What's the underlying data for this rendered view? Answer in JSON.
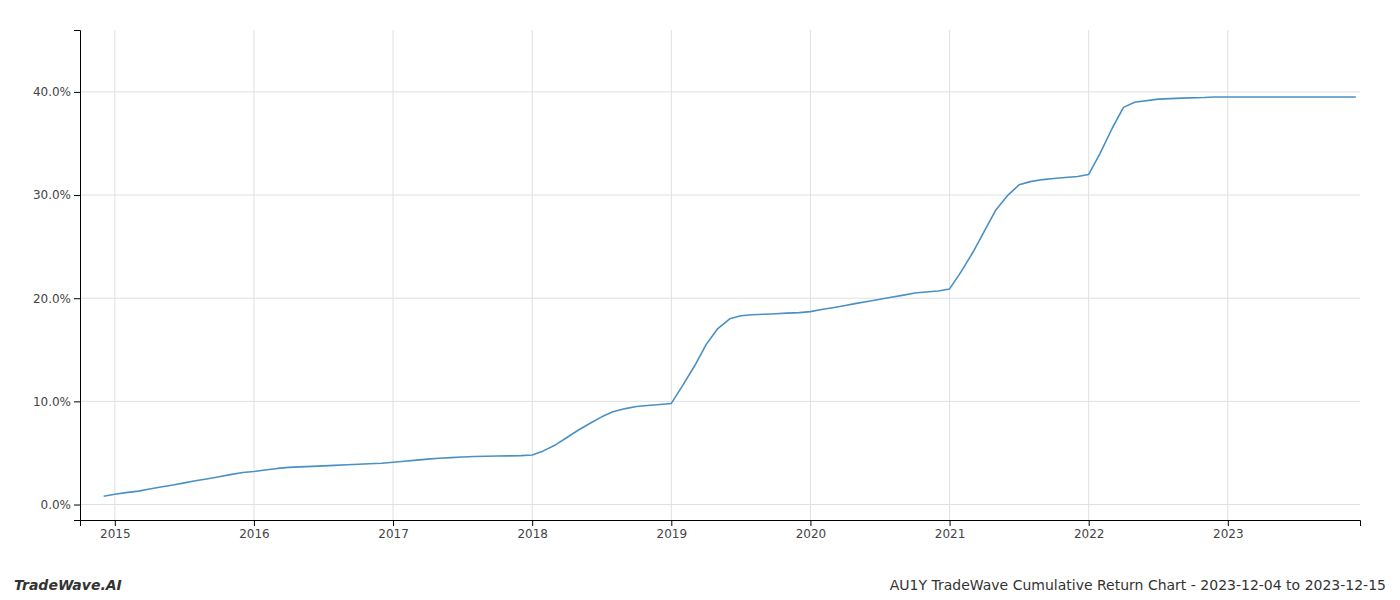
{
  "chart_data": {
    "type": "line",
    "annotations": [
      "TradeWave.AI",
      "AU1Y TradeWave Cumulative Return Chart - 2023-12-04 to 2023-12-15"
    ],
    "color": "#4a90c4",
    "grid": true,
    "x": [
      2014.92,
      2015.0,
      2015.08,
      2015.17,
      2015.25,
      2015.33,
      2015.42,
      2015.5,
      2015.58,
      2015.67,
      2015.75,
      2015.83,
      2015.92,
      2016.0,
      2016.08,
      2016.17,
      2016.25,
      2016.33,
      2016.42,
      2016.5,
      2016.58,
      2016.67,
      2016.75,
      2016.83,
      2016.92,
      2017.0,
      2017.08,
      2017.17,
      2017.25,
      2017.33,
      2017.42,
      2017.5,
      2017.58,
      2017.67,
      2017.75,
      2017.83,
      2017.92,
      2018.0,
      2018.08,
      2018.17,
      2018.25,
      2018.33,
      2018.42,
      2018.5,
      2018.58,
      2018.67,
      2018.75,
      2018.83,
      2018.92,
      2019.0,
      2019.08,
      2019.17,
      2019.25,
      2019.33,
      2019.42,
      2019.5,
      2019.58,
      2019.67,
      2019.75,
      2019.83,
      2019.92,
      2020.0,
      2020.08,
      2020.17,
      2020.25,
      2020.33,
      2020.42,
      2020.5,
      2020.58,
      2020.67,
      2020.75,
      2020.83,
      2020.92,
      2021.0,
      2021.08,
      2021.17,
      2021.25,
      2021.33,
      2021.42,
      2021.5,
      2021.58,
      2021.67,
      2021.75,
      2021.83,
      2021.92,
      2022.0,
      2022.08,
      2022.17,
      2022.25,
      2022.33,
      2022.5,
      2022.67,
      2022.83,
      2022.9,
      2023.0,
      2023.5,
      2023.92
    ],
    "values": [
      0.8,
      1.0,
      1.15,
      1.3,
      1.5,
      1.7,
      1.9,
      2.1,
      2.3,
      2.5,
      2.7,
      2.9,
      3.1,
      3.2,
      3.35,
      3.5,
      3.6,
      3.65,
      3.7,
      3.75,
      3.8,
      3.85,
      3.9,
      3.95,
      4.0,
      4.1,
      4.2,
      4.3,
      4.4,
      4.48,
      4.55,
      4.6,
      4.65,
      4.68,
      4.7,
      4.72,
      4.74,
      4.8,
      5.2,
      5.8,
      6.5,
      7.2,
      7.9,
      8.5,
      9.0,
      9.3,
      9.5,
      9.6,
      9.7,
      9.8,
      11.5,
      13.5,
      15.5,
      17.0,
      18.0,
      18.3,
      18.4,
      18.45,
      18.5,
      18.55,
      18.6,
      18.7,
      18.9,
      19.1,
      19.3,
      19.5,
      19.7,
      19.9,
      20.1,
      20.3,
      20.5,
      20.6,
      20.7,
      20.9,
      22.5,
      24.5,
      26.5,
      28.5,
      30.0,
      31.0,
      31.3,
      31.5,
      31.6,
      31.7,
      31.8,
      32.0,
      34.0,
      36.5,
      38.5,
      39.0,
      39.3,
      39.4,
      39.45,
      39.5,
      39.5,
      39.5,
      39.5
    ],
    "xlim": [
      2014.75,
      2023.95
    ],
    "xticks": [
      2015,
      2016,
      2017,
      2018,
      2019,
      2020,
      2021,
      2022,
      2023
    ],
    "ylim": [
      -1.5,
      46
    ],
    "yticks": [
      {
        "value": 0,
        "label": "0.0%"
      },
      {
        "value": 10,
        "label": "10.0%"
      },
      {
        "value": 20,
        "label": "20.0%"
      },
      {
        "value": 30,
        "label": "30.0%"
      },
      {
        "value": 40,
        "label": "40.0%"
      }
    ]
  }
}
